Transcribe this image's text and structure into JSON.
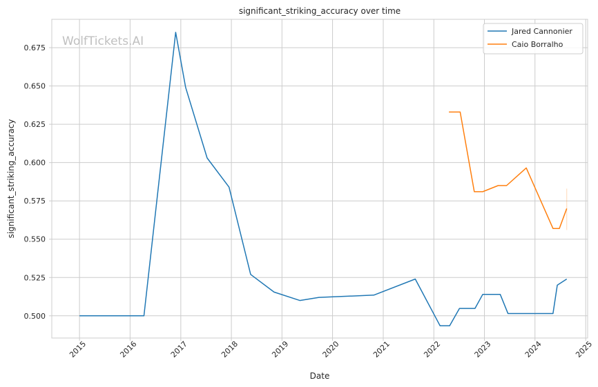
{
  "chart_data": {
    "type": "line",
    "title": "significant_striking_accuracy over time",
    "xlabel": "Date",
    "ylabel": "significant_striking_accuracy",
    "watermark": "WolfTickets.AI",
    "xlim": [
      "2014-06-15",
      "2025-01-15"
    ],
    "ylim": [
      0.4855,
      0.6935
    ],
    "x_ticks": [
      "2015",
      "2016",
      "2017",
      "2018",
      "2019",
      "2020",
      "2021",
      "2022",
      "2023",
      "2024",
      "2025"
    ],
    "y_ticks": [
      "0.500",
      "0.525",
      "0.550",
      "0.575",
      "0.600",
      "0.625",
      "0.650",
      "0.675"
    ],
    "grid": true,
    "legend_position": "top-right",
    "series": [
      {
        "name": "Jared Cannonier",
        "color": "#1f77b4",
        "points": [
          {
            "x": "2015-01-01",
            "y": 0.5
          },
          {
            "x": "2016-04-10",
            "y": 0.5
          },
          {
            "x": "2016-11-25",
            "y": 0.685
          },
          {
            "x": "2017-02-05",
            "y": 0.649
          },
          {
            "x": "2017-07-10",
            "y": 0.603
          },
          {
            "x": "2017-12-15",
            "y": 0.584
          },
          {
            "x": "2018-05-20",
            "y": 0.527
          },
          {
            "x": "2018-11-05",
            "y": 0.5155
          },
          {
            "x": "2019-05-10",
            "y": 0.51
          },
          {
            "x": "2019-09-25",
            "y": 0.512
          },
          {
            "x": "2020-10-25",
            "y": 0.5135
          },
          {
            "x": "2021-08-20",
            "y": 0.524
          },
          {
            "x": "2022-02-15",
            "y": 0.4935
          },
          {
            "x": "2022-04-25",
            "y": 0.4935
          },
          {
            "x": "2022-07-05",
            "y": 0.5048
          },
          {
            "x": "2022-10-25",
            "y": 0.5048
          },
          {
            "x": "2022-12-20",
            "y": 0.514
          },
          {
            "x": "2023-04-25",
            "y": 0.514
          },
          {
            "x": "2023-06-20",
            "y": 0.5015
          },
          {
            "x": "2024-05-10",
            "y": 0.5015
          },
          {
            "x": "2024-06-10",
            "y": 0.52
          },
          {
            "x": "2024-08-17",
            "y": 0.524
          }
        ]
      },
      {
        "name": "Caio Borralho",
        "color": "#ff7f0e",
        "points": [
          {
            "x": "2022-04-20",
            "y": 0.633
          },
          {
            "x": "2022-07-10",
            "y": 0.633
          },
          {
            "x": "2022-10-20",
            "y": 0.581
          },
          {
            "x": "2022-12-20",
            "y": 0.581
          },
          {
            "x": "2023-04-10",
            "y": 0.585
          },
          {
            "x": "2023-06-10",
            "y": 0.585
          },
          {
            "x": "2023-10-30",
            "y": 0.5965
          },
          {
            "x": "2024-05-10",
            "y": 0.557
          },
          {
            "x": "2024-06-25",
            "y": 0.557
          },
          {
            "x": "2024-08-17",
            "y": 0.57
          }
        ],
        "error_band": {
          "x": "2024-08-17",
          "y_low": 0.556,
          "y_high": 0.583
        }
      }
    ]
  }
}
